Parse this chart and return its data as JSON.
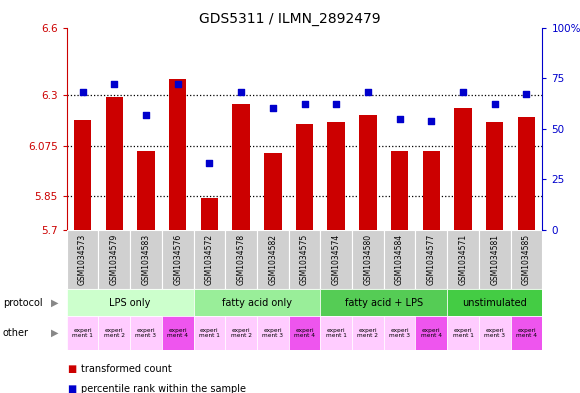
{
  "title": "GDS5311 / ILMN_2892479",
  "samples": [
    "GSM1034573",
    "GSM1034579",
    "GSM1034583",
    "GSM1034576",
    "GSM1034572",
    "GSM1034578",
    "GSM1034582",
    "GSM1034575",
    "GSM1034574",
    "GSM1034580",
    "GSM1034584",
    "GSM1034577",
    "GSM1034571",
    "GSM1034581",
    "GSM1034585"
  ],
  "red_values": [
    6.19,
    6.29,
    6.05,
    6.37,
    5.84,
    6.26,
    6.04,
    6.17,
    6.18,
    6.21,
    6.05,
    6.05,
    6.24,
    6.18,
    6.2
  ],
  "blue_values": [
    68,
    72,
    57,
    72,
    33,
    68,
    60,
    62,
    62,
    68,
    55,
    54,
    68,
    62,
    67
  ],
  "ylim_left": [
    5.7,
    6.6
  ],
  "ylim_right": [
    0,
    100
  ],
  "yticks_left": [
    5.7,
    5.85,
    6.075,
    6.3,
    6.6
  ],
  "yticks_right": [
    0,
    25,
    50,
    75,
    100
  ],
  "ytick_labels_left": [
    "5.7",
    "5.85",
    "6.075",
    "6.3",
    "6.6"
  ],
  "ytick_labels_right": [
    "0",
    "25",
    "50",
    "75",
    "100%"
  ],
  "dotted_lines": [
    5.85,
    6.075,
    6.3
  ],
  "protocols": [
    {
      "label": "LPS only",
      "start": 0,
      "end": 4,
      "color": "#ccffcc"
    },
    {
      "label": "fatty acid only",
      "start": 4,
      "end": 8,
      "color": "#99ee99"
    },
    {
      "label": "fatty acid + LPS",
      "start": 8,
      "end": 12,
      "color": "#55cc55"
    },
    {
      "label": "unstimulated",
      "start": 12,
      "end": 15,
      "color": "#44cc44"
    }
  ],
  "other_colors": [
    "#ffccff",
    "#ffccff",
    "#ffccff",
    "#ee55ee",
    "#ffccff",
    "#ffccff",
    "#ffccff",
    "#ee55ee",
    "#ffccff",
    "#ffccff",
    "#ffccff",
    "#ee55ee",
    "#ffccff",
    "#ffccff",
    "#ee55ee"
  ],
  "other_labels": [
    "experi\nment 1",
    "experi\nment 2",
    "experi\nment 3",
    "experi\nment 4",
    "experi\nment 1",
    "experi\nment 2",
    "experi\nment 3",
    "experi\nment 4",
    "experi\nment 1",
    "experi\nment 2",
    "experi\nment 3",
    "experi\nment 4",
    "experi\nment 1",
    "experi\nment 3",
    "experi\nment 4"
  ],
  "bar_color": "#cc0000",
  "dot_color": "#0000cc",
  "bar_width": 0.55,
  "background_color": "#ffffff",
  "plot_bg_color": "#ffffff",
  "left_axis_color": "#cc0000",
  "right_axis_color": "#0000cc",
  "xlabels_bg": "#d0d0d0",
  "xlabels_border": "#ffffff"
}
